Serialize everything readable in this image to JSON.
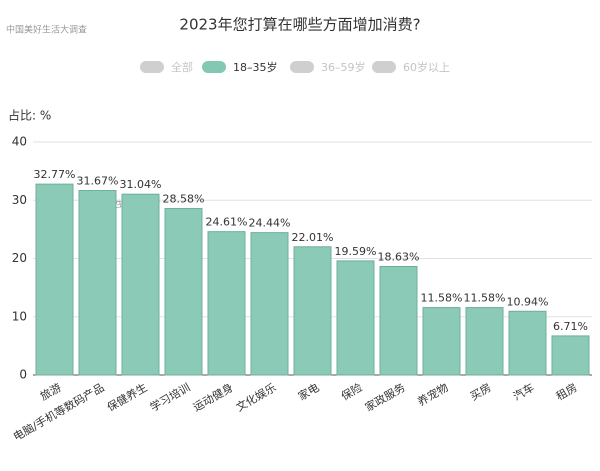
{
  "chart_data": {
    "type": "bar",
    "title": "2023年您打算在哪些方面增加消费?",
    "watermark": "中国美好生活大调查",
    "y_axis_label": "占比: %",
    "legend": [
      {
        "name": "全部",
        "color": "#cfcfcf",
        "active": false
      },
      {
        "name": "18–35岁",
        "color": "#84c7b2",
        "active": true
      },
      {
        "name": "36–59岁",
        "color": "#cfcfcf",
        "active": false
      },
      {
        "name": "60岁以上",
        "color": "#cfcfcf",
        "active": false
      }
    ],
    "categories": [
      "旅游",
      "电脑/手机等数码产品",
      "保健养生",
      "学习培训",
      "运动健身",
      "文化娱乐",
      "家电",
      "保险",
      "家政服务",
      "养宠物",
      "买房",
      "汽车",
      "租房"
    ],
    "series": [
      {
        "color": "#8ccab8",
        "values": [
          32.77,
          31.67,
          31.04,
          28.58,
          24.61,
          24.44,
          22.01,
          19.59,
          18.63,
          11.58,
          11.58,
          10.94,
          6.71
        ],
        "value_labels": [
          "32.77%",
          "31.67%",
          "31.04%",
          "28.58%",
          "24.61%",
          "24.44%",
          "22.01%",
          "19.59%",
          "18.63%",
          "11.58%",
          "11.58%",
          "10.94%",
          "6.71%"
        ]
      }
    ],
    "ylim": [
      0,
      40
    ],
    "yticks": [
      0,
      10,
      20,
      30,
      40
    ],
    "grid": true
  }
}
